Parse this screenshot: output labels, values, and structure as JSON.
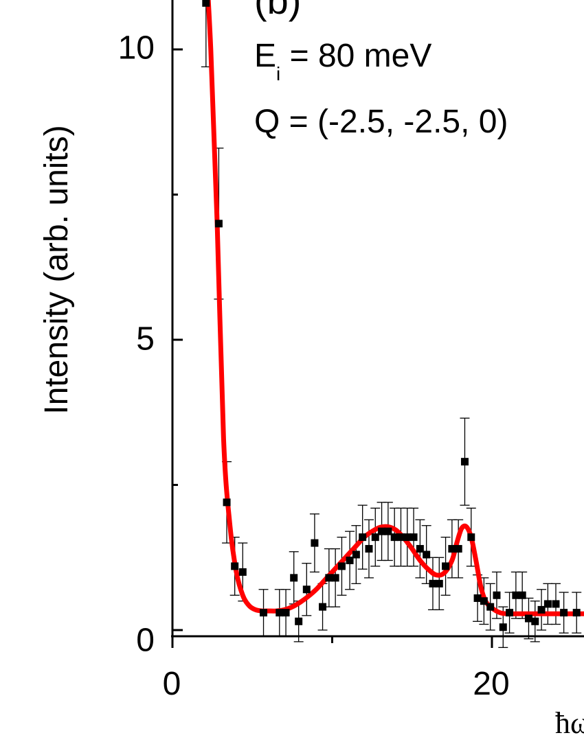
{
  "chart_data": {
    "type": "scatter",
    "panel_label": "(b)",
    "annotation_line1": "E",
    "annotation_sub": "i",
    "annotation_line1_rest": " = 80 meV",
    "annotation_line2": "Q = (-2.5, -2.5, 0)",
    "ylabel": "Intensity (arb. units)",
    "xlabel": "ħω",
    "xlim": [
      0,
      25.9
    ],
    "ylim": [
      -0.1,
      11.0
    ],
    "y_ticks": [
      "0",
      "5",
      "10"
    ],
    "x_ticks": [
      "0",
      "20"
    ],
    "colors": {
      "fit": "#ff0000",
      "points": "#000000"
    },
    "series": [
      {
        "name": "",
        "x": [
          2.1,
          2.9,
          3.4,
          3.9,
          4.4,
          5.7,
          6.7,
          7.1,
          7.6,
          7.9,
          8.4,
          8.9,
          9.4,
          9.8,
          10.2,
          10.6,
          11.1,
          11.5,
          11.9,
          12.3,
          12.7,
          13.1,
          13.5,
          13.9,
          14.3,
          14.7,
          15.1,
          15.5,
          15.9,
          16.3,
          16.7,
          17.1,
          17.5,
          17.9,
          18.3,
          18.7,
          19.1,
          19.5,
          19.9,
          20.3,
          20.7,
          21.1,
          21.5,
          21.9,
          22.3,
          22.7,
          23.1,
          23.5,
          24.0,
          24.5,
          25.3
        ],
        "y": [
          10.8,
          7.0,
          2.2,
          1.1,
          1.0,
          0.3,
          0.3,
          0.3,
          0.9,
          0.15,
          0.7,
          1.5,
          0.4,
          0.9,
          0.9,
          1.1,
          1.2,
          1.3,
          1.6,
          1.4,
          1.6,
          1.7,
          1.7,
          1.6,
          1.6,
          1.6,
          1.6,
          1.4,
          1.3,
          0.8,
          0.8,
          1.1,
          1.4,
          1.4,
          2.9,
          1.6,
          0.55,
          0.5,
          0.4,
          0.6,
          0.05,
          0.3,
          0.6,
          0.6,
          0.2,
          0.15,
          0.35,
          0.45,
          0.45,
          0.3,
          0.3
        ],
        "err": [
          1.1,
          1.3,
          0.7,
          0.5,
          0.5,
          0.4,
          0.4,
          0.4,
          0.45,
          0.35,
          0.45,
          0.5,
          0.4,
          0.5,
          0.5,
          0.5,
          0.5,
          0.5,
          0.55,
          0.5,
          0.5,
          0.5,
          0.5,
          0.5,
          0.5,
          0.5,
          0.5,
          0.5,
          0.5,
          0.45,
          0.45,
          0.5,
          0.5,
          0.5,
          0.75,
          0.5,
          0.4,
          0.4,
          0.4,
          0.4,
          0.35,
          0.35,
          0.4,
          0.4,
          0.35,
          0.35,
          0.35,
          0.35,
          0.35,
          0.35,
          0.35
        ]
      }
    ],
    "fit": {
      "x": [
        2.0,
        2.4,
        2.8,
        3.2,
        3.6,
        4.0,
        4.4,
        4.8,
        5.2,
        5.6,
        6.0,
        6.5,
        7.0,
        7.5,
        8.0,
        8.5,
        9.0,
        9.5,
        10.0,
        10.5,
        11.0,
        11.5,
        12.0,
        12.5,
        13.0,
        13.5,
        14.0,
        14.5,
        15.0,
        15.5,
        16.0,
        16.5,
        17.0,
        17.5,
        17.8,
        18.1,
        18.4,
        18.7,
        19.0,
        19.3,
        19.6,
        20.0,
        20.5,
        21.0,
        21.5,
        22.0,
        23.0,
        24.0,
        25.0,
        25.9
      ],
      "y": [
        12.0,
        10.0,
        7.0,
        3.3,
        1.8,
        1.0,
        0.6,
        0.42,
        0.35,
        0.33,
        0.33,
        0.33,
        0.35,
        0.4,
        0.48,
        0.58,
        0.7,
        0.85,
        1.0,
        1.15,
        1.3,
        1.45,
        1.6,
        1.7,
        1.77,
        1.78,
        1.72,
        1.58,
        1.4,
        1.2,
        1.05,
        0.95,
        0.98,
        1.2,
        1.5,
        1.75,
        1.78,
        1.6,
        1.2,
        0.75,
        0.5,
        0.38,
        0.3,
        0.28,
        0.28,
        0.28,
        0.28,
        0.28,
        0.28,
        0.28
      ]
    }
  }
}
